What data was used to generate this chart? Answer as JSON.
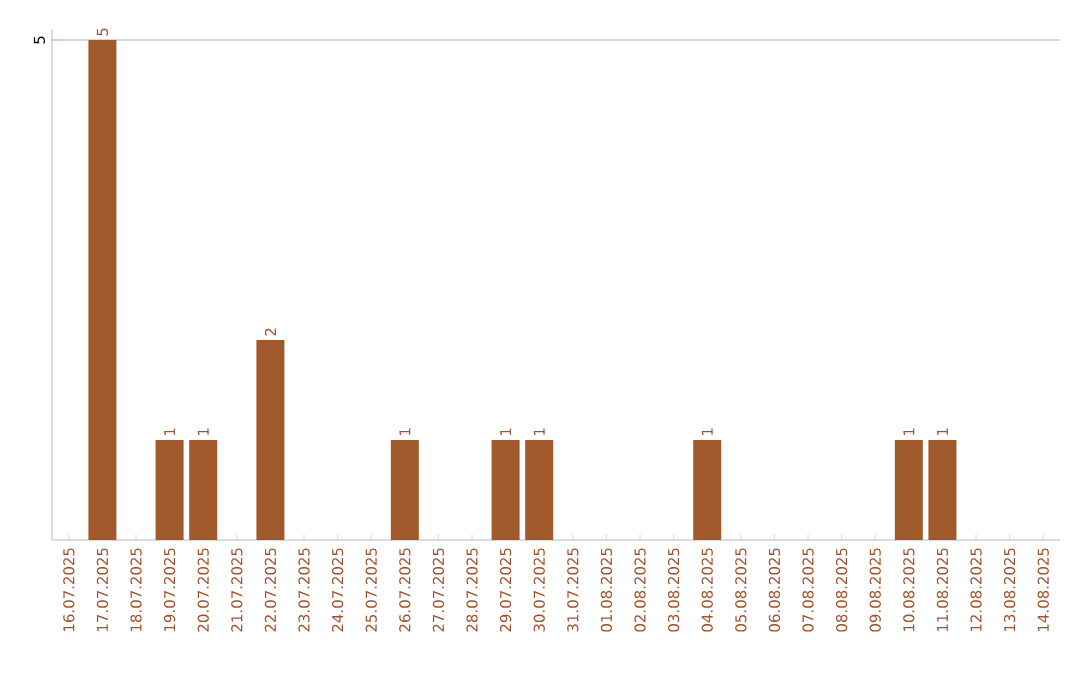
{
  "chart_data": {
    "type": "bar",
    "categories": [
      "16.07.2025",
      "17.07.2025",
      "18.07.2025",
      "19.07.2025",
      "20.07.2025",
      "21.07.2025",
      "22.07.2025",
      "23.07.2025",
      "24.07.2025",
      "25.07.2025",
      "26.07.2025",
      "27.07.2025",
      "28.07.2025",
      "29.07.2025",
      "30.07.2025",
      "31.07.2025",
      "01.08.2025",
      "02.08.2025",
      "03.08.2025",
      "04.08.2025",
      "05.08.2025",
      "06.08.2025",
      "07.08.2025",
      "08.08.2025",
      "09.08.2025",
      "10.08.2025",
      "11.08.2025",
      "12.08.2025",
      "13.08.2025",
      "14.08.2025"
    ],
    "values": [
      0,
      5,
      0,
      1,
      1,
      0,
      2,
      0,
      0,
      0,
      1,
      0,
      0,
      1,
      1,
      0,
      0,
      0,
      0,
      1,
      0,
      0,
      0,
      0,
      0,
      1,
      1,
      0,
      0,
      0
    ],
    "color": "#a0592a",
    "value_labels": [
      null,
      "5",
      null,
      "1",
      "1",
      null,
      "2",
      null,
      null,
      null,
      "1",
      null,
      null,
      "1",
      "1",
      null,
      null,
      null,
      null,
      "1",
      null,
      null,
      null,
      null,
      null,
      "1",
      "1",
      null,
      null,
      null
    ],
    "ylim": [
      0,
      5.1
    ],
    "yticks": [
      5
    ],
    "grid": "y"
  }
}
